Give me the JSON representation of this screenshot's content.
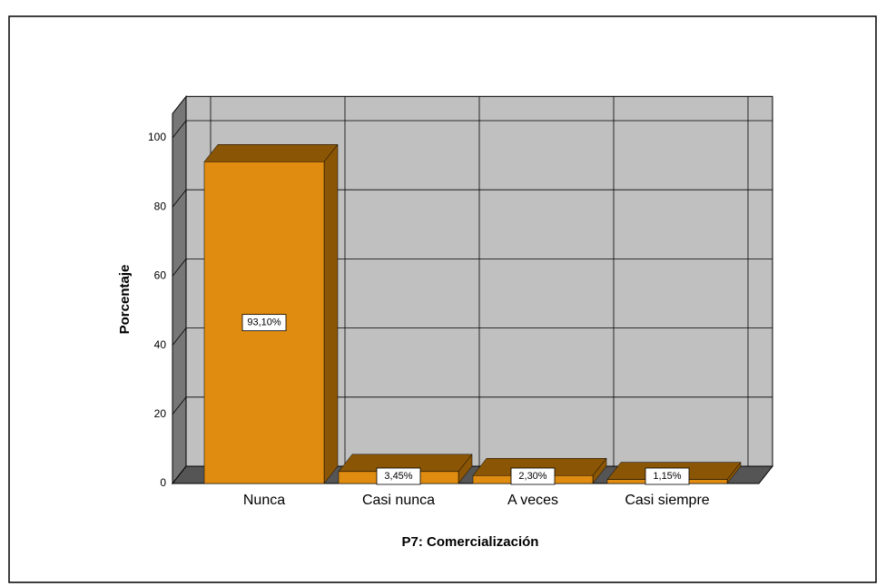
{
  "chart_data": {
    "type": "bar3d",
    "xlabel": "P7: Comercialización",
    "ylabel": "Porcentaje",
    "categories": [
      "Nunca",
      "Casi nunca",
      "A veces",
      "Casi siempre"
    ],
    "values": [
      93.1,
      3.45,
      2.3,
      1.15
    ],
    "value_labels": [
      "93,10%",
      "3,45%",
      "2,30%",
      "1,15%"
    ],
    "color": "#e08c10",
    "ylim": [
      0,
      107
    ],
    "yticks": [
      0,
      20,
      40,
      60,
      80,
      100
    ],
    "grid": true
  }
}
